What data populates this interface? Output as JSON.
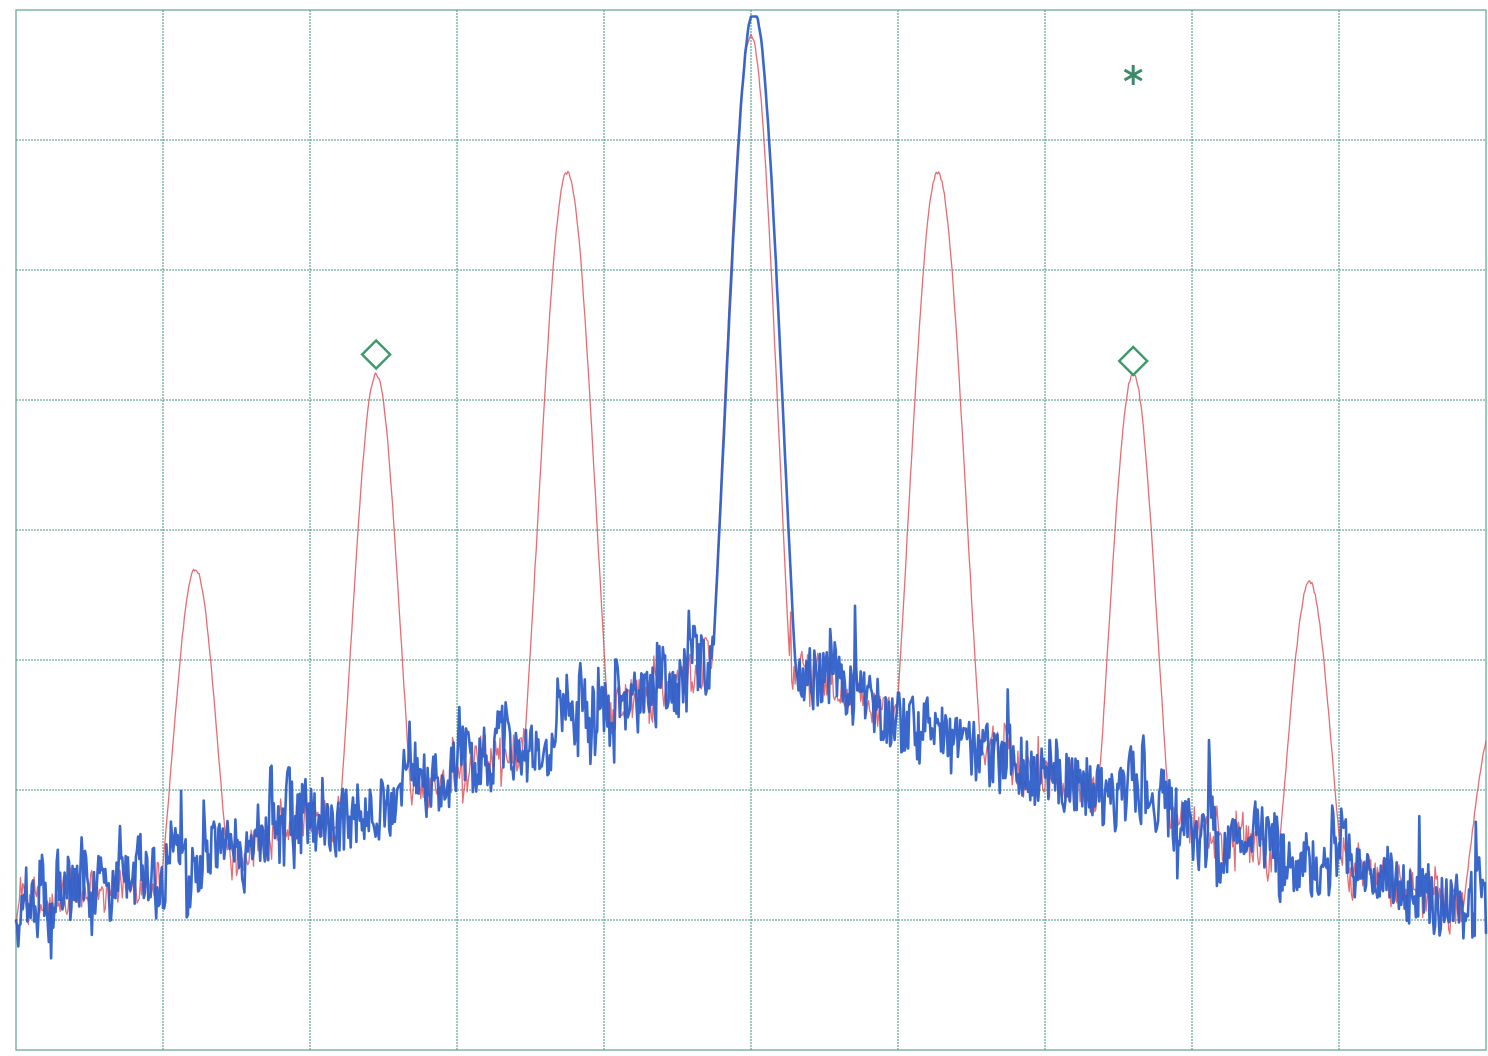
{
  "chart_data": {
    "type": "line",
    "title": "",
    "xlabel": "",
    "ylabel": "",
    "grid": true,
    "legend": "none",
    "xlim": [
      0,
      10
    ],
    "ylim": [
      0,
      8
    ],
    "grid_divisions": {
      "x": 10,
      "y": 8
    },
    "noise_floor_start": 1.0,
    "noise_floor_center": 3.2,
    "series": [
      {
        "color": "#e0535d",
        "style": "thin",
        "peaks": [
          {
            "x": 1.22,
            "y": 3.7,
            "width": 0.16
          },
          {
            "x": 2.45,
            "y": 5.2,
            "width": 0.17
          },
          {
            "x": 3.75,
            "y": 6.75,
            "width": 0.2
          },
          {
            "x": 5.0,
            "y": 7.8,
            "width": 0.19
          },
          {
            "x": 6.27,
            "y": 6.75,
            "width": 0.2
          },
          {
            "x": 7.6,
            "y": 5.2,
            "width": 0.17
          },
          {
            "x": 8.8,
            "y": 3.6,
            "width": 0.16
          },
          {
            "x": 10.05,
            "y": 2.5,
            "width": 0.16
          }
        ]
      },
      {
        "color": "#2f5fc8",
        "style": "thick",
        "peaks": [
          {
            "x": 5.02,
            "y": 8.0,
            "width": 0.2
          }
        ]
      }
    ],
    "markers": [
      {
        "type": "diamond",
        "x": 2.45,
        "y": 5.35,
        "color": "#3c9a6a"
      },
      {
        "type": "diamond",
        "x": 7.6,
        "y": 5.3,
        "color": "#3c9a6a"
      },
      {
        "type": "asterisk",
        "x": 7.6,
        "y": 7.5,
        "color": "#3c8a6a"
      }
    ]
  }
}
